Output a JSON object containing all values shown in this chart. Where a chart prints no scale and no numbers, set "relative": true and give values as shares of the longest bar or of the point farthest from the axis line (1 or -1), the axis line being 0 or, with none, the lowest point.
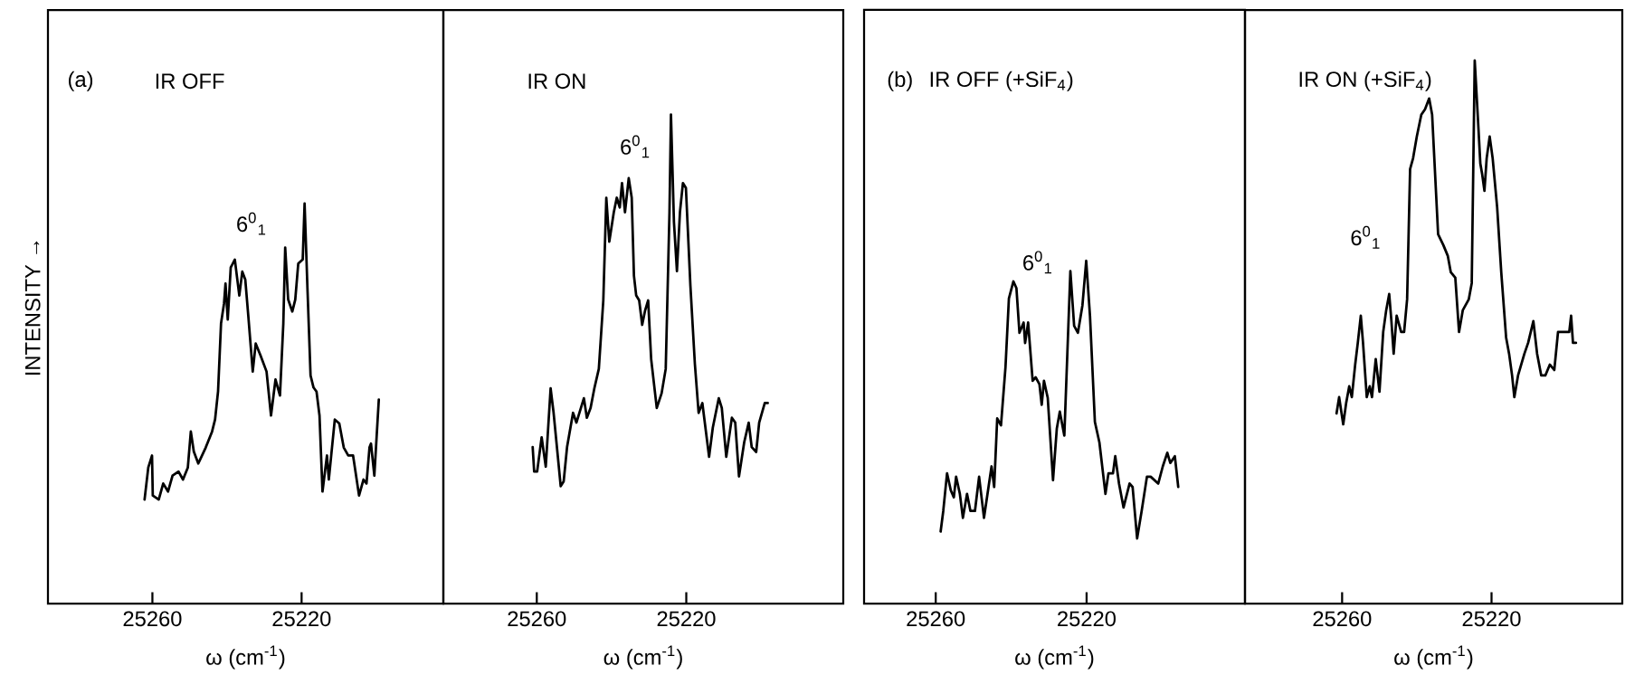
{
  "chart_data": [
    {
      "type": "line",
      "relative": true,
      "title": "IR OFF",
      "xlabel": "ω (cm$^{-1}$)",
      "ylabel": "INTENSITY →",
      "annotations": [
        "(a)",
        "6$^{0}$$_{1}$"
      ],
      "color": "#000000",
      "xlim": [
        25288,
        25182
      ],
      "xticks": [
        25260,
        25220
      ],
      "x": [
        25262.1,
        25261.1,
        25260.1,
        25259.9,
        25258.3,
        25257.1,
        25255.8,
        25254.6,
        25253.0,
        25251.8,
        25250.5,
        25249.7,
        25248.9,
        25247.7,
        25245.7,
        25244.0,
        25243.2,
        25242.4,
        25241.6,
        25240.8,
        25240.4,
        25239.8,
        25239.0,
        25237.9,
        25236.7,
        25235.9,
        25235.1,
        25234.3,
        25233.1,
        25232.3,
        25231.0,
        25229.4,
        25228.2,
        25227.0,
        25225.8,
        25224.9,
        25224.4,
        25223.6,
        25222.5,
        25221.7,
        25220.9,
        25219.7,
        25219.2,
        25218.4,
        25217.6,
        25216.8,
        25216.0,
        25215.2,
        25214.4,
        25213.2,
        25212.7,
        25211.1,
        25209.9,
        25208.7,
        25207.5,
        25206.2,
        25204.6,
        25203.4,
        25202.6,
        25201.8,
        25201.4,
        25200.5,
        25199.3
      ],
      "values": [
        0.26,
        0.34,
        0.37,
        0.27,
        0.26,
        0.3,
        0.28,
        0.32,
        0.33,
        0.31,
        0.34,
        0.43,
        0.38,
        0.35,
        0.39,
        0.43,
        0.46,
        0.53,
        0.7,
        0.75,
        0.8,
        0.71,
        0.84,
        0.86,
        0.77,
        0.83,
        0.81,
        0.72,
        0.58,
        0.65,
        0.62,
        0.58,
        0.47,
        0.56,
        0.52,
        0.7,
        0.89,
        0.76,
        0.73,
        0.76,
        0.85,
        0.86,
        1.0,
        0.78,
        0.57,
        0.54,
        0.53,
        0.47,
        0.28,
        0.37,
        0.31,
        0.46,
        0.45,
        0.39,
        0.37,
        0.37,
        0.27,
        0.31,
        0.3,
        0.39,
        0.4,
        0.32,
        0.51
      ]
    },
    {
      "type": "line",
      "relative": true,
      "title": "IR ON",
      "xlabel": "ω (cm$^{-1}$)",
      "annotations": [
        "6$^{0}$$_{1}$"
      ],
      "color": "#000000",
      "xlim": [
        25285,
        25178
      ],
      "xticks": [
        25260,
        25220
      ],
      "x": [
        25261.1,
        25260.7,
        25259.9,
        25258.7,
        25257.6,
        25256.3,
        25255.5,
        25253.6,
        25252.8,
        25251.9,
        25250.3,
        25249.4,
        25247.4,
        25246.6,
        25245.6,
        25244.6,
        25243.4,
        25242.2,
        25241.4,
        25240.6,
        25239.4,
        25238.6,
        25237.8,
        25237.2,
        25236.4,
        25235.4,
        25234.6,
        25234.0,
        25233.4,
        25232.6,
        25231.8,
        25231.0,
        25230.2,
        25229.4,
        25227.9,
        25226.6,
        25225.5,
        25224.5,
        25224.1,
        25223.3,
        25222.5,
        25221.7,
        25220.9,
        25220.1,
        25218.9,
        25217.7,
        25216.7,
        25215.7,
        25213.9,
        25212.9,
        25211.3,
        25210.5,
        25209.3,
        25207.8,
        25206.9,
        25205.9,
        25204.5,
        25203.3,
        25202.5,
        25201.3,
        25200.5,
        25199.0,
        25198.2
      ],
      "values": [
        0.32,
        0.27,
        0.27,
        0.34,
        0.28,
        0.44,
        0.39,
        0.24,
        0.25,
        0.32,
        0.39,
        0.37,
        0.42,
        0.38,
        0.4,
        0.44,
        0.48,
        0.62,
        0.83,
        0.74,
        0.8,
        0.83,
        0.81,
        0.86,
        0.8,
        0.87,
        0.83,
        0.67,
        0.63,
        0.62,
        0.57,
        0.6,
        0.62,
        0.5,
        0.4,
        0.43,
        0.48,
        0.8,
        1.0,
        0.78,
        0.68,
        0.8,
        0.86,
        0.85,
        0.65,
        0.49,
        0.39,
        0.41,
        0.3,
        0.36,
        0.42,
        0.4,
        0.3,
        0.38,
        0.37,
        0.26,
        0.33,
        0.37,
        0.32,
        0.31,
        0.37,
        0.41,
        0.41
      ]
    },
    {
      "type": "line",
      "relative": true,
      "title": "IR OFF (+SiF$_{4}$)",
      "xlabel": "ω (cm$^{-1}$)",
      "annotations": [
        "(b)",
        "6$^{0}$$_{1}$"
      ],
      "color": "#000000",
      "xlim": [
        25279,
        25178
      ],
      "xticks": [
        25260,
        25220
      ],
      "x": [
        25258.7,
        25258.0,
        25257.0,
        25256.0,
        25255.2,
        25254.6,
        25253.6,
        25252.8,
        25251.7,
        25250.8,
        25249.6,
        25248.5,
        25247.2,
        25245.2,
        25244.5,
        25243.7,
        25242.7,
        25241.5,
        25240.6,
        25239.4,
        25238.6,
        25237.8,
        25236.7,
        25236.3,
        25235.5,
        25234.3,
        25233.5,
        25232.5,
        25231.9,
        25231.3,
        25230.3,
        25228.9,
        25227.9,
        25227.1,
        25225.9,
        25224.3,
        25223.3,
        25222.3,
        25221.1,
        25220.1,
        25219.1,
        25217.8,
        25216.6,
        25215.0,
        25214.2,
        25213.0,
        25212.4,
        25211.4,
        25210.2,
        25208.6,
        25207.8,
        25206.6,
        25205.4,
        25204.0,
        25203.0,
        25201.0,
        25199.8,
        25198.6,
        25197.8,
        25196.6,
        25195.7
      ],
      "values": [
        0.21,
        0.27,
        0.38,
        0.33,
        0.31,
        0.37,
        0.32,
        0.25,
        0.32,
        0.27,
        0.27,
        0.37,
        0.25,
        0.4,
        0.34,
        0.54,
        0.52,
        0.69,
        0.89,
        0.94,
        0.92,
        0.79,
        0.82,
        0.76,
        0.82,
        0.65,
        0.66,
        0.64,
        0.58,
        0.65,
        0.6,
        0.36,
        0.51,
        0.56,
        0.49,
        0.97,
        0.81,
        0.79,
        0.87,
        1.0,
        0.84,
        0.53,
        0.47,
        0.32,
        0.38,
        0.38,
        0.43,
        0.35,
        0.28,
        0.35,
        0.34,
        0.19,
        0.27,
        0.37,
        0.37,
        0.35,
        0.4,
        0.44,
        0.41,
        0.43,
        0.34
      ]
    },
    {
      "type": "line",
      "relative": true,
      "title": "IR ON (+SiF$_{4}$)",
      "xlabel": "ω (cm$^{-1}$)",
      "annotations": [
        "6$^{0}$$_{1}$"
      ],
      "color": "#000000",
      "xlim": [
        25286,
        25185
      ],
      "xticks": [
        25260,
        25220
      ],
      "x": [
        25261.5,
        25260.8,
        25259.7,
        25258.9,
        25258.1,
        25257.4,
        25256.5,
        25255.8,
        25255.0,
        25254.4,
        25253.4,
        25252.6,
        25252.0,
        25251.0,
        25250.0,
        25249.0,
        25248.2,
        25247.4,
        25246.8,
        25246.2,
        25245.4,
        25244.2,
        25243.4,
        25242.6,
        25241.8,
        25241.0,
        25240.0,
        25238.8,
        25237.8,
        25236.7,
        25235.9,
        25234.3,
        25232.9,
        25231.7,
        25230.9,
        25229.7,
        25228.7,
        25227.7,
        25226.1,
        25225.3,
        25224.5,
        25223.7,
        25223.0,
        25222.5,
        25221.9,
        25221.3,
        25220.5,
        25219.7,
        25218.5,
        25217.4,
        25216.1,
        25215.3,
        25214.5,
        25213.9,
        25212.9,
        25211.2,
        25210.2,
        25208.8,
        25207.8,
        25206.7,
        25205.6,
        25204.4,
        25203.2,
        25202.2,
        25201.4,
        25200.4,
        25199.2,
        25198.7,
        25198.2,
        25197.4
      ],
      "values": [
        0.35,
        0.38,
        0.33,
        0.37,
        0.4,
        0.38,
        0.44,
        0.48,
        0.53,
        0.48,
        0.38,
        0.4,
        0.38,
        0.45,
        0.39,
        0.5,
        0.54,
        0.57,
        0.52,
        0.46,
        0.53,
        0.5,
        0.5,
        0.56,
        0.8,
        0.82,
        0.86,
        0.9,
        0.91,
        0.93,
        0.9,
        0.68,
        0.66,
        0.64,
        0.61,
        0.6,
        0.5,
        0.54,
        0.56,
        0.59,
        1.0,
        0.9,
        0.81,
        0.79,
        0.76,
        0.82,
        0.86,
        0.82,
        0.73,
        0.61,
        0.49,
        0.46,
        0.42,
        0.38,
        0.42,
        0.46,
        0.48,
        0.52,
        0.46,
        0.42,
        0.42,
        0.44,
        0.43,
        0.5,
        0.5,
        0.5,
        0.5,
        0.53,
        0.48,
        0.48
      ]
    }
  ]
}
